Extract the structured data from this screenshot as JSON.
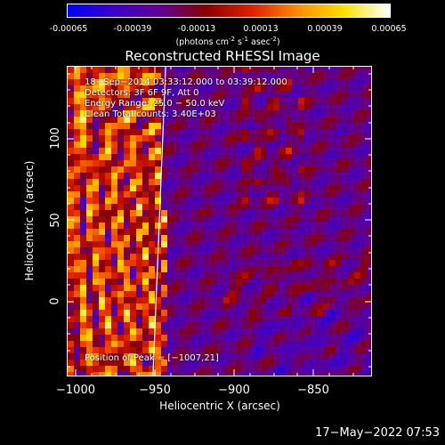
{
  "colorbar": {
    "ticks": [
      "-0.00065",
      "-0.00039",
      "-0.00013",
      "0.00013",
      "0.00039",
      "0.00065"
    ],
    "unit_main": "(photons cm",
    "unit_sup1": "-2",
    "unit_mid1": " s",
    "unit_sup2": "-1",
    "unit_mid2": " asec",
    "unit_sup3": "-2",
    "unit_end": ")",
    "colors": [
      "#0000ff",
      "#3b00c8",
      "#5f0096",
      "#8a0000",
      "#e01e00",
      "#ff8c00",
      "#ffe000",
      "#ffffff"
    ]
  },
  "chart_data": {
    "type": "heatmap",
    "title": "Reconstructed RHESSI Image",
    "xlabel": "Heliocentric X (arcsec)",
    "ylabel": "Heliocentric Y (arcsec)",
    "xlim": [
      -1007,
      -815
    ],
    "ylim": [
      -46,
      145
    ],
    "x_ticks": [
      "−1000",
      "−950",
      "−900",
      "−850"
    ],
    "y_ticks": [
      "0",
      "50",
      "100"
    ],
    "annotations": [
      "18−Sep−2014 03:33:12.000 to 03:39:12.000",
      "Detectors: 3F 6F 9F, Att 0",
      "Energy Range: 25.0 − 50.0 keV",
      "Clean     Total counts: 3.40E+03",
      "Position of Peak = [−1007,21]"
    ],
    "peak_position": [
      -1007,
      21
    ],
    "limb_line": [
      [
        -945,
        145
      ],
      [
        -953,
        -46
      ]
    ],
    "value_range": [
      -0.00065,
      0.00065
    ]
  },
  "timestamp": "17−May−2022 07:53"
}
